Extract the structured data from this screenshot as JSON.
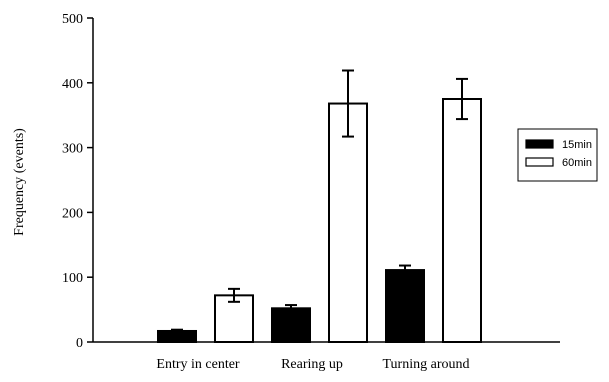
{
  "chart_data": {
    "type": "bar",
    "title": "",
    "xlabel": "",
    "ylabel": "Frequency (events)",
    "categories": [
      "Entry in center",
      "Rearing up",
      "Turning around"
    ],
    "ylim": [
      0,
      500
    ],
    "yticks": [
      0,
      100,
      200,
      300,
      400,
      500
    ],
    "grid": false,
    "legend": "right",
    "series": [
      {
        "name": "15min",
        "color": "#000000",
        "values": [
          17,
          52,
          111
        ],
        "errors": [
          2,
          5,
          7
        ]
      },
      {
        "name": "60min",
        "color": "#ffffff",
        "values": [
          72,
          368,
          375
        ],
        "errors": [
          10,
          51,
          31
        ]
      }
    ]
  }
}
